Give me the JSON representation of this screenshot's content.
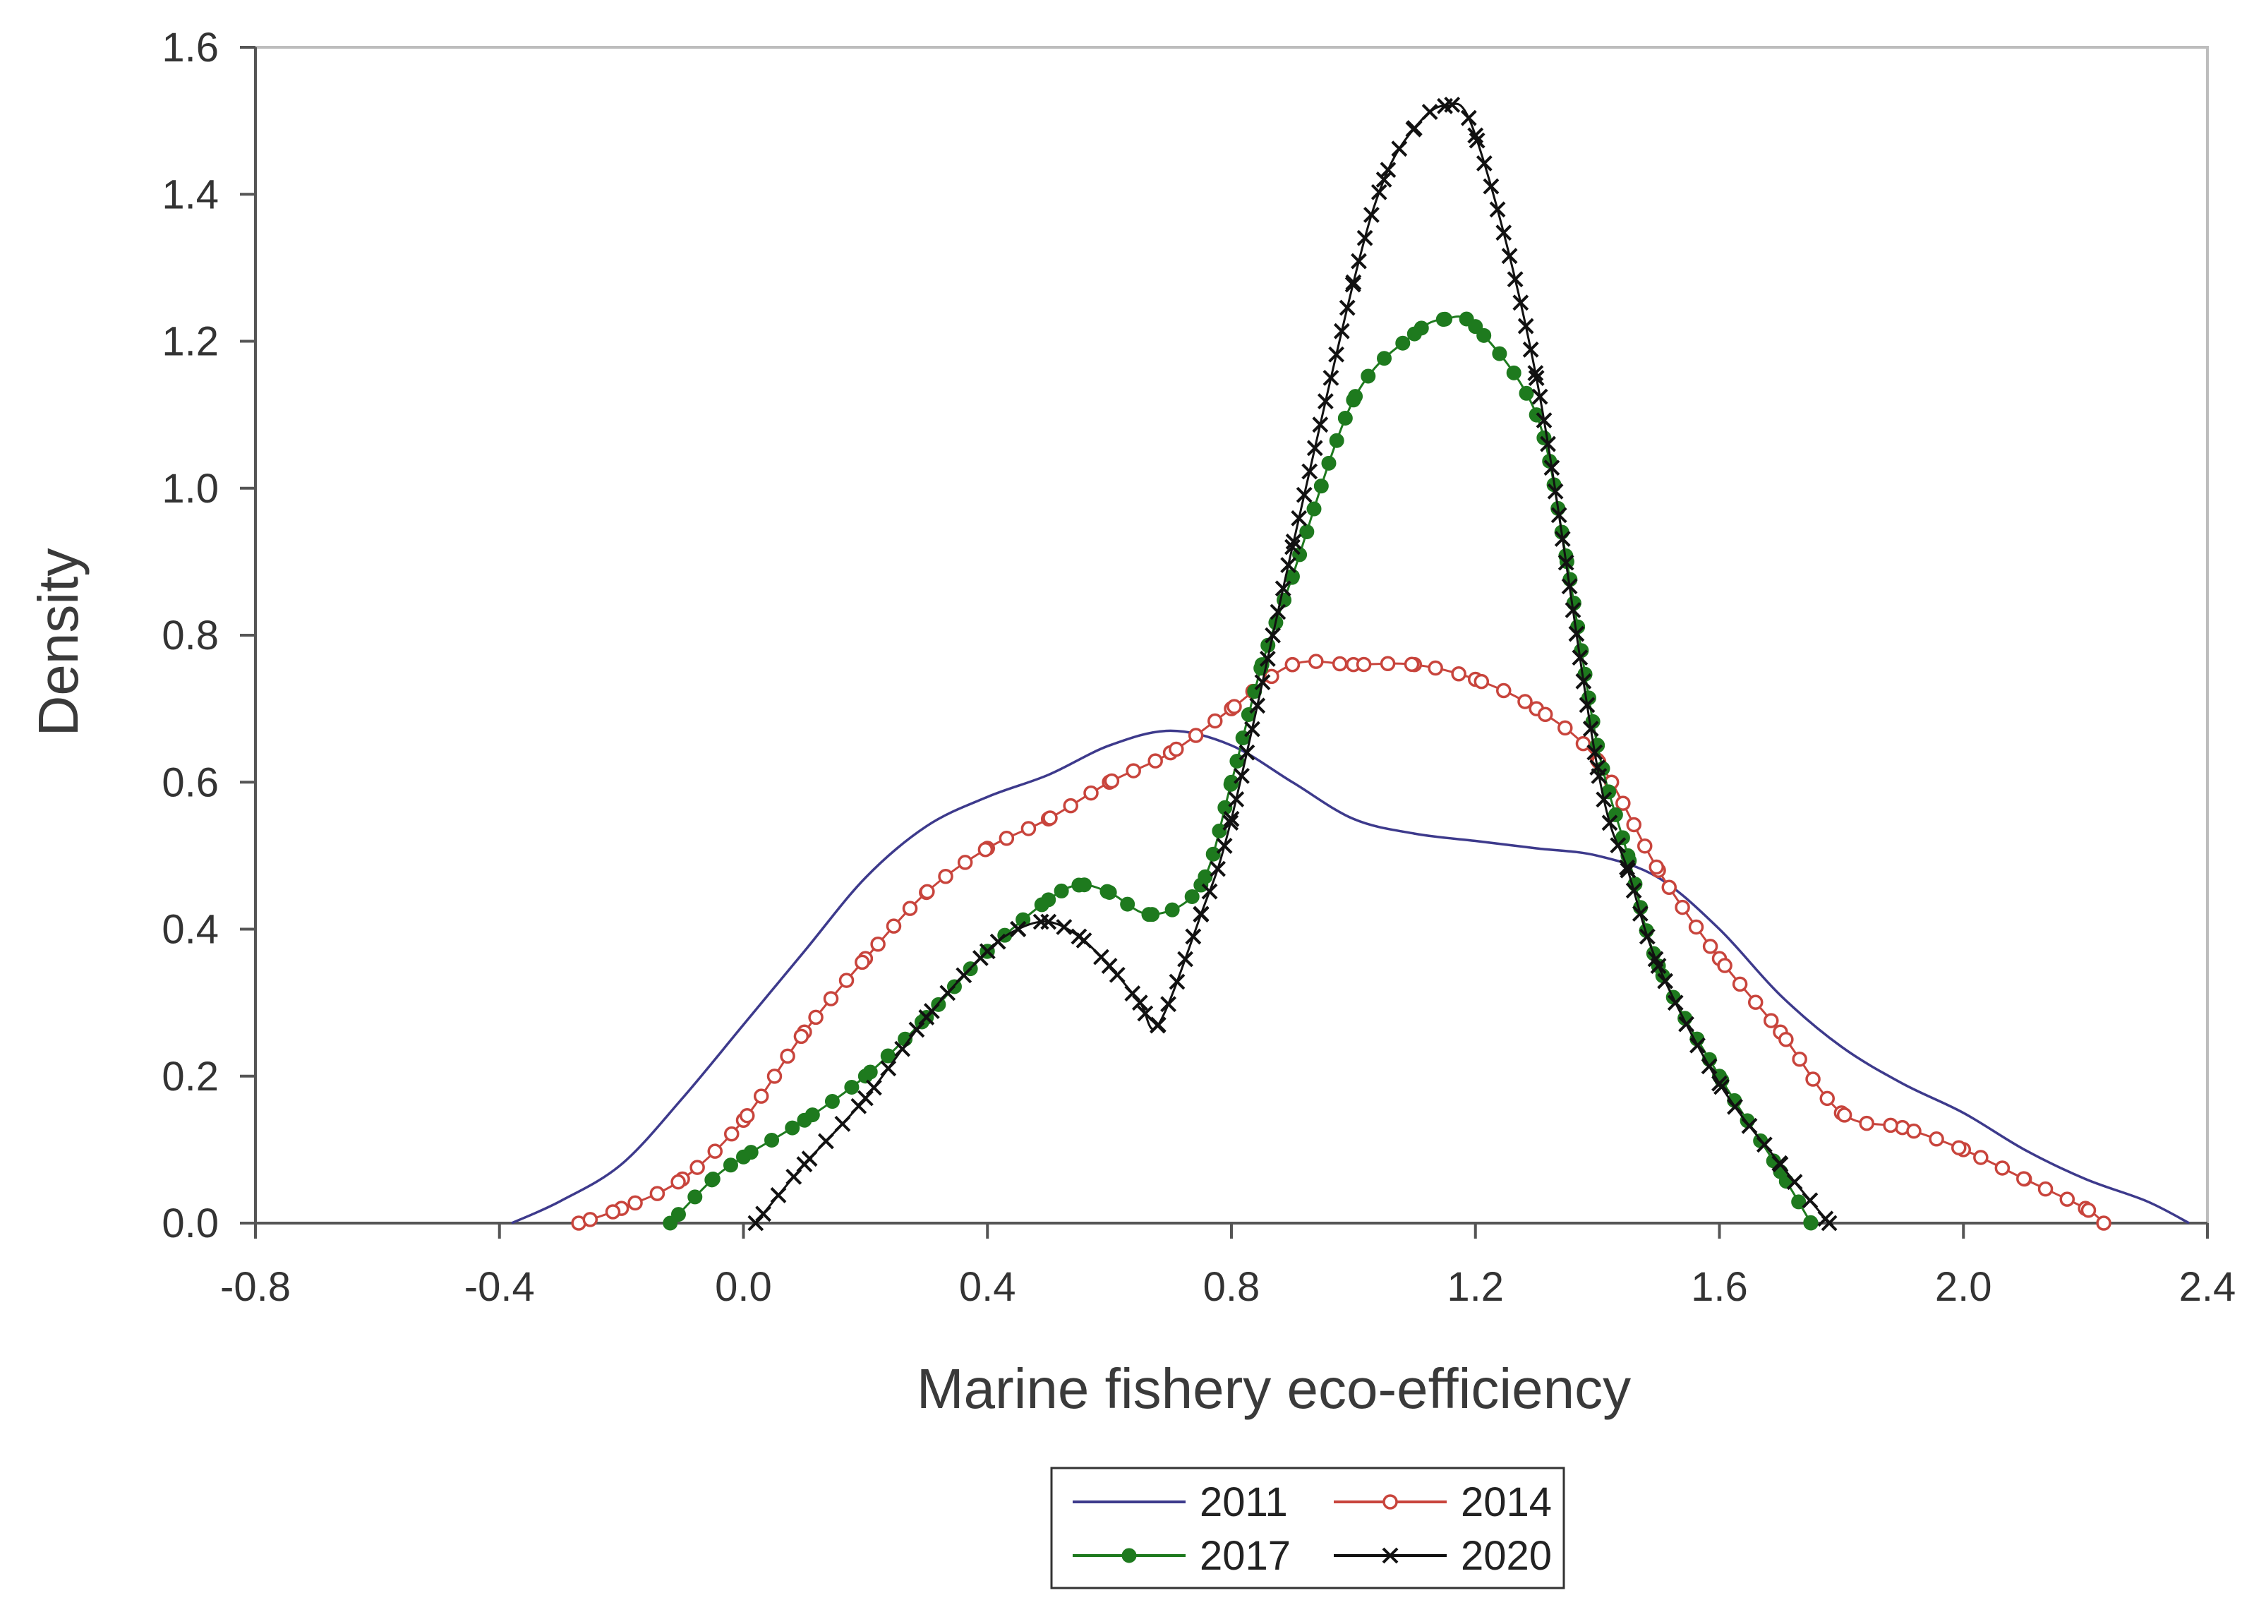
{
  "chart_data": {
    "type": "line",
    "title": "",
    "xlabel": "Marine fishery eco-efficiency",
    "ylabel": "Density",
    "xlim": [
      -0.8,
      2.4
    ],
    "ylim": [
      0.0,
      1.6
    ],
    "x_ticks": [
      "-0.8",
      "-0.4",
      "0.0",
      "0.4",
      "0.8",
      "1.2",
      "1.6",
      "2.0",
      "2.4"
    ],
    "y_ticks": [
      "0.0",
      "0.2",
      "0.4",
      "0.6",
      "0.8",
      "1.0",
      "1.2",
      "1.4",
      "1.6"
    ],
    "grid": false,
    "legend_position": "bottom-center",
    "series": [
      {
        "name": "2011",
        "color": "#3d3a8c",
        "marker": "none",
        "x": [
          -0.38,
          -0.3,
          -0.2,
          -0.1,
          0.0,
          0.1,
          0.2,
          0.3,
          0.4,
          0.5,
          0.6,
          0.7,
          0.8,
          0.9,
          1.0,
          1.1,
          1.2,
          1.3,
          1.4,
          1.5,
          1.6,
          1.7,
          1.8,
          1.9,
          2.0,
          2.1,
          2.2,
          2.3,
          2.37
        ],
        "y": [
          0.0,
          0.03,
          0.08,
          0.17,
          0.27,
          0.37,
          0.47,
          0.54,
          0.58,
          0.61,
          0.65,
          0.67,
          0.65,
          0.6,
          0.55,
          0.53,
          0.52,
          0.51,
          0.5,
          0.47,
          0.4,
          0.31,
          0.24,
          0.19,
          0.15,
          0.1,
          0.06,
          0.03,
          0.0
        ]
      },
      {
        "name": "2014",
        "color": "#c8443c",
        "marker": "open-circle",
        "x": [
          -0.27,
          -0.2,
          -0.1,
          0.0,
          0.1,
          0.2,
          0.3,
          0.4,
          0.5,
          0.6,
          0.7,
          0.8,
          0.9,
          1.0,
          1.1,
          1.2,
          1.3,
          1.4,
          1.5,
          1.6,
          1.7,
          1.8,
          1.9,
          2.0,
          2.1,
          2.2,
          2.23
        ],
        "y": [
          0.0,
          0.02,
          0.06,
          0.14,
          0.26,
          0.36,
          0.45,
          0.51,
          0.55,
          0.6,
          0.64,
          0.7,
          0.76,
          0.76,
          0.76,
          0.74,
          0.7,
          0.63,
          0.48,
          0.36,
          0.26,
          0.15,
          0.13,
          0.1,
          0.06,
          0.02,
          0.0
        ]
      },
      {
        "name": "2017",
        "color": "#1e7a1e",
        "marker": "filled-circle",
        "x": [
          -0.12,
          -0.05,
          0.0,
          0.1,
          0.2,
          0.3,
          0.4,
          0.5,
          0.55,
          0.6,
          0.67,
          0.75,
          0.8,
          0.85,
          0.9,
          1.0,
          1.1,
          1.15,
          1.2,
          1.3,
          1.35,
          1.4,
          1.45,
          1.5,
          1.6,
          1.7,
          1.75
        ],
        "y": [
          0.0,
          0.06,
          0.09,
          0.14,
          0.2,
          0.28,
          0.37,
          0.44,
          0.46,
          0.45,
          0.42,
          0.46,
          0.6,
          0.76,
          0.88,
          1.12,
          1.21,
          1.23,
          1.22,
          1.1,
          0.9,
          0.65,
          0.5,
          0.35,
          0.2,
          0.07,
          0.0
        ]
      },
      {
        "name": "2020",
        "color": "#111111",
        "marker": "x",
        "x": [
          0.02,
          0.1,
          0.2,
          0.3,
          0.4,
          0.45,
          0.5,
          0.55,
          0.6,
          0.65,
          0.68,
          0.75,
          0.8,
          0.9,
          1.0,
          1.05,
          1.1,
          1.15,
          1.2,
          1.3,
          1.4,
          1.45,
          1.5,
          1.6,
          1.7,
          1.78
        ],
        "y": [
          0.0,
          0.08,
          0.17,
          0.28,
          0.37,
          0.4,
          0.41,
          0.39,
          0.35,
          0.3,
          0.27,
          0.42,
          0.55,
          0.92,
          1.28,
          1.42,
          1.49,
          1.52,
          1.48,
          1.15,
          0.62,
          0.48,
          0.35,
          0.19,
          0.08,
          0.0
        ]
      }
    ]
  }
}
